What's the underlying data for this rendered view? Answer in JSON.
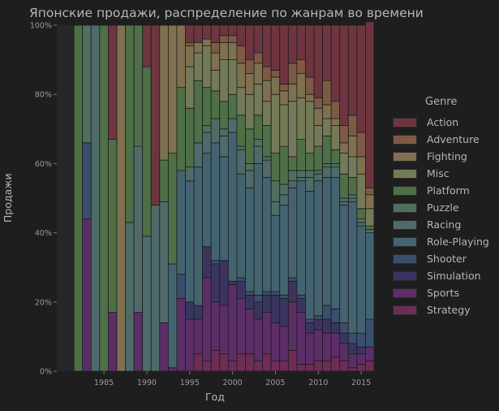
{
  "chart_data": {
    "type": "bar",
    "stacked": true,
    "normalized": true,
    "title": "Японские продажи, распределение по жанрам во времени",
    "xlabel": "Год",
    "ylabel": "Продажи",
    "ylim": [
      0,
      1
    ],
    "xlim": [
      1980,
      2016
    ],
    "x_ticks": [
      1985,
      1990,
      1995,
      2000,
      2005,
      2010,
      2015
    ],
    "y_ticks": [
      {
        "v": 0,
        "label": "0%"
      },
      {
        "v": 0.2,
        "label": "20%"
      },
      {
        "v": 0.4,
        "label": "40%"
      },
      {
        "v": 0.6,
        "label": "60%"
      },
      {
        "v": 0.8,
        "label": "80%"
      },
      {
        "v": 1.0,
        "label": "100%"
      }
    ],
    "legend_title": "Genre",
    "legend_position": "right",
    "genres": [
      {
        "name": "Action",
        "color": "#6e3540"
      },
      {
        "name": "Adventure",
        "color": "#7e5a44"
      },
      {
        "name": "Fighting",
        "color": "#7f7150"
      },
      {
        "name": "Misc",
        "color": "#747a58"
      },
      {
        "name": "Platform",
        "color": "#4f6f47"
      },
      {
        "name": "Puzzle",
        "color": "#506f5e"
      },
      {
        "name": "Racing",
        "color": "#4e6b6a"
      },
      {
        "name": "Role-Playing",
        "color": "#446370"
      },
      {
        "name": "Shooter",
        "color": "#3b4e6d"
      },
      {
        "name": "Simulation",
        "color": "#3a3560"
      },
      {
        "name": "Sports",
        "color": "#5c2e68"
      },
      {
        "name": "Strategy",
        "color": "#6d2e56"
      }
    ],
    "stack_order": [
      "Strategy",
      "Sports",
      "Simulation",
      "Shooter",
      "Role-Playing",
      "Racing",
      "Puzzle",
      "Platform",
      "Misc",
      "Fighting",
      "Adventure",
      "Action"
    ],
    "years": [
      1980,
      1981,
      1982,
      1983,
      1984,
      1985,
      1986,
      1987,
      1988,
      1989,
      1990,
      1991,
      1992,
      1993,
      1994,
      1995,
      1996,
      1997,
      1998,
      1999,
      2000,
      2001,
      2002,
      2003,
      2004,
      2005,
      2006,
      2007,
      2008,
      2009,
      2010,
      2011,
      2012,
      2013,
      2014,
      2015,
      2016
    ],
    "shares": [
      {},
      {},
      {
        "Platform": 1.0
      },
      {
        "Sports": 0.44,
        "Shooter": 0.22,
        "Puzzle": 0.34
      },
      {
        "Racing": 1.0
      },
      {
        "Platform": 1.0
      },
      {
        "Sports": 0.17,
        "Platform": 0.5,
        "Action": 0.33
      },
      {
        "Fighting": 1.0
      },
      {
        "Racing": 0.43,
        "Platform": 0.57
      },
      {
        "Sports": 0.17,
        "Racing": 0.48,
        "Platform": 0.35
      },
      {
        "Racing": 0.39,
        "Platform": 0.49,
        "Action": 0.12
      },
      {
        "Racing": 0.48,
        "Action": 0.52
      },
      {
        "Sports": 0.14,
        "Racing": 0.35,
        "Platform": 0.12,
        "Fighting": 0.39
      },
      {
        "Sports": 0.01,
        "Role-Playing": 0.3,
        "Platform": 0.32,
        "Fighting": 0.37
      },
      {
        "Sports": 0.21,
        "Shooter": 0.07,
        "Role-Playing": 0.3,
        "Platform": 0.24,
        "Fighting": 0.18
      },
      {
        "Sports": 0.15,
        "Simulation": 0.05,
        "Role-Playing": 0.35,
        "Racing": 0.04,
        "Platform": 0.17,
        "Misc": 0.12,
        "Fighting": 0.06,
        "Adventure": 0.01,
        "Action": 0.05
      },
      {
        "Strategy": 0.05,
        "Sports": 0.1,
        "Simulation": 0.04,
        "Role-Playing": 0.4,
        "Racing": 0.07,
        "Platform": 0.18,
        "Misc": 0.08,
        "Fighting": 0.03,
        "Action": 0.05
      },
      {
        "Strategy": 0.03,
        "Sports": 0.24,
        "Simulation": 0.09,
        "Role-Playing": 0.27,
        "Racing": 0.06,
        "Puzzle": 0.02,
        "Platform": 0.11,
        "Misc": 0.12,
        "Fighting": 0.02,
        "Action": 0.04
      },
      {
        "Strategy": 0.06,
        "Sports": 0.14,
        "Simulation": 0.11,
        "Shooter": 0.01,
        "Role-Playing": 0.34,
        "Racing": 0.07,
        "Platform": 0.08,
        "Misc": 0.06,
        "Fighting": 0.05,
        "Adventure": 0.03,
        "Action": 0.05
      },
      {
        "Strategy": 0.05,
        "Sports": 0.14,
        "Simulation": 0.13,
        "Role-Playing": 0.3,
        "Racing": 0.06,
        "Puzzle": 0.02,
        "Platform": 0.08,
        "Misc": 0.12,
        "Fighting": 0.05,
        "Adventure": 0.02,
        "Action": 0.03
      },
      {
        "Strategy": 0.03,
        "Sports": 0.22,
        "Simulation": 0.01,
        "Role-Playing": 0.43,
        "Racing": 0.04,
        "Platform": 0.07,
        "Misc": 0.1,
        "Fighting": 0.05,
        "Adventure": 0.02,
        "Action": 0.03
      },
      {
        "Strategy": 0.05,
        "Sports": 0.16,
        "Simulation": 0.05,
        "Shooter": 0.01,
        "Role-Playing": 0.3,
        "Racing": 0.07,
        "Puzzle": 0.01,
        "Platform": 0.09,
        "Misc": 0.08,
        "Fighting": 0.07,
        "Adventure": 0.05,
        "Action": 0.06
      },
      {
        "Strategy": 0.05,
        "Sports": 0.13,
        "Simulation": 0.04,
        "Shooter": 0.01,
        "Role-Playing": 0.3,
        "Racing": 0.05,
        "Puzzle": 0.02,
        "Platform": 0.1,
        "Misc": 0.1,
        "Fighting": 0.06,
        "Adventure": 0.04,
        "Action": 0.1
      },
      {
        "Strategy": 0.03,
        "Sports": 0.12,
        "Simulation": 0.05,
        "Shooter": 0.02,
        "Role-Playing": 0.38,
        "Racing": 0.05,
        "Puzzle": 0.02,
        "Platform": 0.07,
        "Misc": 0.09,
        "Fighting": 0.06,
        "Adventure": 0.03,
        "Action": 0.08
      },
      {
        "Strategy": 0.05,
        "Sports": 0.12,
        "Simulation": 0.05,
        "Shooter": 0.01,
        "Role-Playing": 0.33,
        "Racing": 0.05,
        "Puzzle": 0.01,
        "Platform": 0.09,
        "Misc": 0.07,
        "Fighting": 0.06,
        "Adventure": 0.04,
        "Action": 0.12
      },
      {
        "Strategy": 0.03,
        "Sports": 0.11,
        "Simulation": 0.08,
        "Shooter": 0.01,
        "Role-Playing": 0.22,
        "Racing": 0.04,
        "Puzzle": 0.06,
        "Platform": 0.08,
        "Misc": 0.17,
        "Fighting": 0.05,
        "Adventure": 0.02,
        "Action": 0.13
      },
      {
        "Strategy": 0.03,
        "Sports": 0.1,
        "Simulation": 0.08,
        "Shooter": 0.01,
        "Role-Playing": 0.26,
        "Racing": 0.03,
        "Puzzle": 0.03,
        "Platform": 0.11,
        "Misc": 0.12,
        "Fighting": 0.04,
        "Adventure": 0.02,
        "Action": 0.17
      },
      {
        "Strategy": 0.06,
        "Sports": 0.14,
        "Simulation": 0.06,
        "Shooter": 0.01,
        "Role-Playing": 0.26,
        "Racing": 0.02,
        "Puzzle": 0.03,
        "Platform": 0.04,
        "Misc": 0.16,
        "Fighting": 0.05,
        "Adventure": 0.06,
        "Action": 0.11
      },
      {
        "Strategy": 0.02,
        "Sports": 0.15,
        "Simulation": 0.04,
        "Shooter": 0.01,
        "Role-Playing": 0.33,
        "Racing": 0.01,
        "Puzzle": 0.02,
        "Platform": 0.09,
        "Misc": 0.12,
        "Fighting": 0.07,
        "Adventure": 0.04,
        "Action": 0.1
      },
      {
        "Strategy": 0.02,
        "Sports": 0.09,
        "Simulation": 0.03,
        "Shooter": 0.01,
        "Role-Playing": 0.37,
        "Racing": 0.04,
        "Puzzle": 0.02,
        "Platform": 0.05,
        "Misc": 0.15,
        "Fighting": 0.02,
        "Adventure": 0.05,
        "Action": 0.15
      },
      {
        "Strategy": 0.03,
        "Sports": 0.09,
        "Simulation": 0.03,
        "Shooter": 0.01,
        "Role-Playing": 0.39,
        "Racing": 0.02,
        "Puzzle": 0.01,
        "Platform": 0.07,
        "Misc": 0.06,
        "Fighting": 0.05,
        "Adventure": 0.03,
        "Action": 0.21
      },
      {
        "Strategy": 0.03,
        "Sports": 0.08,
        "Simulation": 0.04,
        "Shooter": 0.04,
        "Role-Playing": 0.37,
        "Racing": 0.03,
        "Puzzle": 0.01,
        "Platform": 0.08,
        "Misc": 0.05,
        "Fighting": 0.04,
        "Adventure": 0.07,
        "Action": 0.16
      },
      {
        "Strategy": 0.04,
        "Sports": 0.07,
        "Simulation": 0.03,
        "Shooter": 0.04,
        "Role-Playing": 0.38,
        "Racing": 0.03,
        "Puzzle": 0.01,
        "Platform": 0.04,
        "Misc": 0.07,
        "Fighting": 0.02,
        "Adventure": 0.05,
        "Action": 0.22
      },
      {
        "Strategy": 0.03,
        "Sports": 0.05,
        "Simulation": 0.03,
        "Shooter": 0.03,
        "Role-Playing": 0.34,
        "Racing": 0.01,
        "Puzzle": 0.01,
        "Platform": 0.07,
        "Misc": 0.06,
        "Fighting": 0.03,
        "Adventure": 0.05,
        "Action": 0.29
      },
      {
        "Strategy": 0.01,
        "Sports": 0.04,
        "Simulation": 0.03,
        "Shooter": 0.03,
        "Role-Playing": 0.38,
        "Racing": 0.01,
        "Puzzle": 0.01,
        "Platform": 0.05,
        "Misc": 0.06,
        "Fighting": 0.06,
        "Adventure": 0.06,
        "Action": 0.26
      },
      {
        "Strategy": 0.02,
        "Sports": 0.03,
        "Simulation": 0.02,
        "Shooter": 0.04,
        "Role-Playing": 0.31,
        "Racing": 0.01,
        "Puzzle": 0.01,
        "Platform": 0.03,
        "Misc": 0.1,
        "Fighting": 0.05,
        "Adventure": 0.07,
        "Action": 0.31
      },
      {
        "Strategy": 0.03,
        "Sports": 0.04,
        "Shooter": 0.08,
        "Role-Playing": 0.25,
        "Racing": 0.01,
        "Platform": 0.01,
        "Misc": 0.05,
        "Fighting": 0.04,
        "Adventure": 0.02,
        "Action": 0.48
      }
    ]
  }
}
